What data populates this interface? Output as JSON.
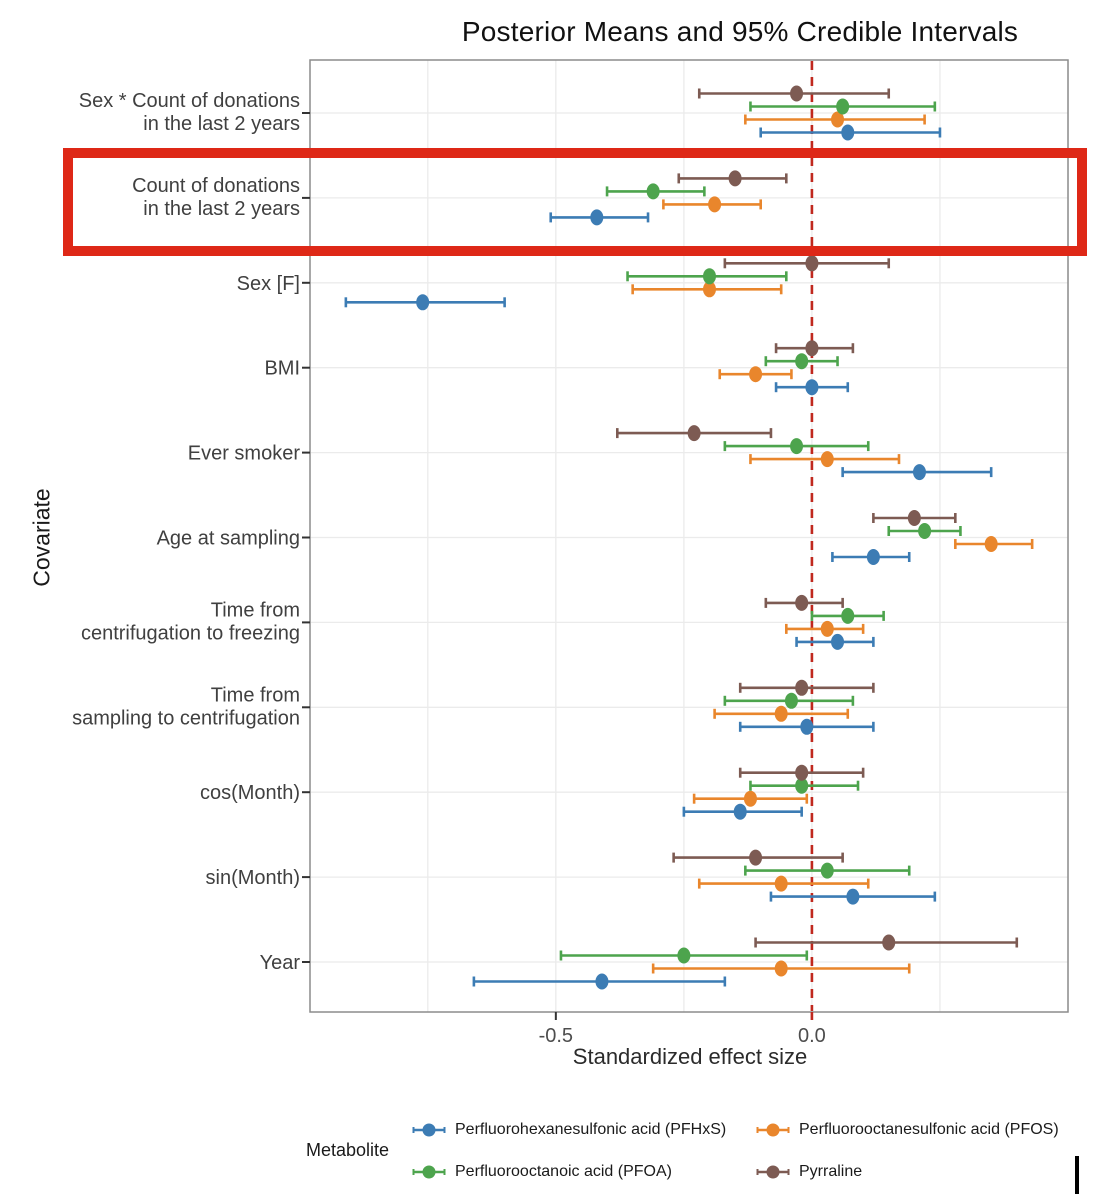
{
  "page": {
    "title": "Posterior Means and 95% Credible Intervals"
  },
  "chart_data": {
    "type": "scatter",
    "subtype": "forest-plot-dot-whisker",
    "title": "Posterior Means and 95% Credible Intervals",
    "xlabel": "Standardized effect size",
    "ylabel": "Covariate",
    "xlim": [
      -0.98,
      0.5
    ],
    "grid": true,
    "gridlines_x": [
      -0.75,
      -0.5,
      -0.25,
      0,
      0.25,
      0.5
    ],
    "x_ticks": [
      {
        "value": -0.5,
        "label": "-0.5"
      },
      {
        "value": 0.0,
        "label": "0.0"
      }
    ],
    "zero_line": {
      "value": 0,
      "style": "dashed",
      "color": "#c0281e"
    },
    "categories": [
      {
        "lines": [
          "Sex * Count of donations",
          "in the last 2 years"
        ]
      },
      {
        "lines": [
          "Count of donations",
          "in the last 2 years"
        ]
      },
      {
        "lines": [
          "Sex [F]"
        ]
      },
      {
        "lines": [
          "BMI"
        ]
      },
      {
        "lines": [
          "Ever smoker"
        ]
      },
      {
        "lines": [
          "Age at sampling"
        ]
      },
      {
        "lines": [
          "Time from",
          "centrifugation to freezing"
        ]
      },
      {
        "lines": [
          "Time from",
          "sampling to centrifugation"
        ]
      },
      {
        "lines": [
          "cos(Month)"
        ]
      },
      {
        "lines": [
          "sin(Month)"
        ]
      },
      {
        "lines": [
          "Year"
        ]
      }
    ],
    "series": [
      {
        "name": "Perfluorohexanesulfonic acid (PFHxS)",
        "color": "#3c7cb4",
        "offset_slot": 3,
        "values": [
          [
            0.07,
            -0.1,
            0.25
          ],
          [
            -0.42,
            -0.51,
            -0.32
          ],
          [
            -0.76,
            -0.91,
            -0.6
          ],
          [
            0.0,
            -0.07,
            0.07
          ],
          [
            0.21,
            0.06,
            0.35
          ],
          [
            0.12,
            0.04,
            0.19
          ],
          [
            0.05,
            -0.03,
            0.12
          ],
          [
            -0.01,
            -0.14,
            0.12
          ],
          [
            -0.14,
            -0.25,
            -0.02
          ],
          [
            0.08,
            -0.08,
            0.24
          ],
          [
            -0.41,
            -0.66,
            -0.17
          ]
        ]
      },
      {
        "name": "Perfluorooctanesulfonic acid (PFOS)",
        "color": "#e9862c",
        "offset_slot": 2,
        "values": [
          [
            0.05,
            -0.13,
            0.22
          ],
          [
            -0.19,
            -0.29,
            -0.1
          ],
          [
            -0.2,
            -0.35,
            -0.06
          ],
          [
            -0.11,
            -0.18,
            -0.04
          ],
          [
            0.03,
            -0.12,
            0.17
          ],
          [
            0.35,
            0.28,
            0.43
          ],
          [
            0.03,
            -0.05,
            0.1
          ],
          [
            -0.06,
            -0.19,
            0.07
          ],
          [
            -0.12,
            -0.23,
            -0.01
          ],
          [
            -0.06,
            -0.22,
            0.11
          ],
          [
            -0.06,
            -0.31,
            0.19
          ]
        ]
      },
      {
        "name": "Perfluorooctanoic acid (PFOA)",
        "color": "#4da44d",
        "offset_slot": 1,
        "values": [
          [
            0.06,
            -0.12,
            0.24
          ],
          [
            -0.31,
            -0.4,
            -0.21
          ],
          [
            -0.2,
            -0.36,
            -0.05
          ],
          [
            -0.02,
            -0.09,
            0.05
          ],
          [
            -0.03,
            -0.17,
            0.11
          ],
          [
            0.22,
            0.15,
            0.29
          ],
          [
            0.07,
            0.0,
            0.14
          ],
          [
            -0.04,
            -0.17,
            0.08
          ],
          [
            -0.02,
            -0.12,
            0.09
          ],
          [
            0.03,
            -0.13,
            0.19
          ],
          [
            -0.25,
            -0.49,
            -0.01
          ]
        ]
      },
      {
        "name": "Pyrraline",
        "color": "#7d5b53",
        "offset_slot": 0,
        "values": [
          [
            -0.03,
            -0.22,
            0.15
          ],
          [
            -0.15,
            -0.26,
            -0.05
          ],
          [
            0.0,
            -0.17,
            0.15
          ],
          [
            0.0,
            -0.07,
            0.08
          ],
          [
            -0.23,
            -0.38,
            -0.08
          ],
          [
            0.2,
            0.12,
            0.28
          ],
          [
            -0.02,
            -0.09,
            0.06
          ],
          [
            -0.02,
            -0.14,
            0.12
          ],
          [
            -0.02,
            -0.14,
            0.1
          ],
          [
            -0.11,
            -0.27,
            0.06
          ],
          [
            0.15,
            -0.11,
            0.4
          ]
        ]
      }
    ],
    "legend": {
      "title": "Metabolite",
      "position": "bottom",
      "columns": 2
    }
  },
  "colors": {
    "grid": "#ebebeb",
    "panel_border": "#8c8c8c",
    "tick": "#333333",
    "tick_label": "#4d4d4d",
    "category_label": "#404040",
    "zero_line": "#c0281e",
    "highlight_box": "#de2817",
    "cursor_bar": "#000000"
  },
  "annotations": {
    "highlight_box": {
      "target_row": "Count of donations in the last 2 years",
      "color": "#de2817"
    },
    "text_cursor_bar": {
      "color": "#000000"
    }
  }
}
